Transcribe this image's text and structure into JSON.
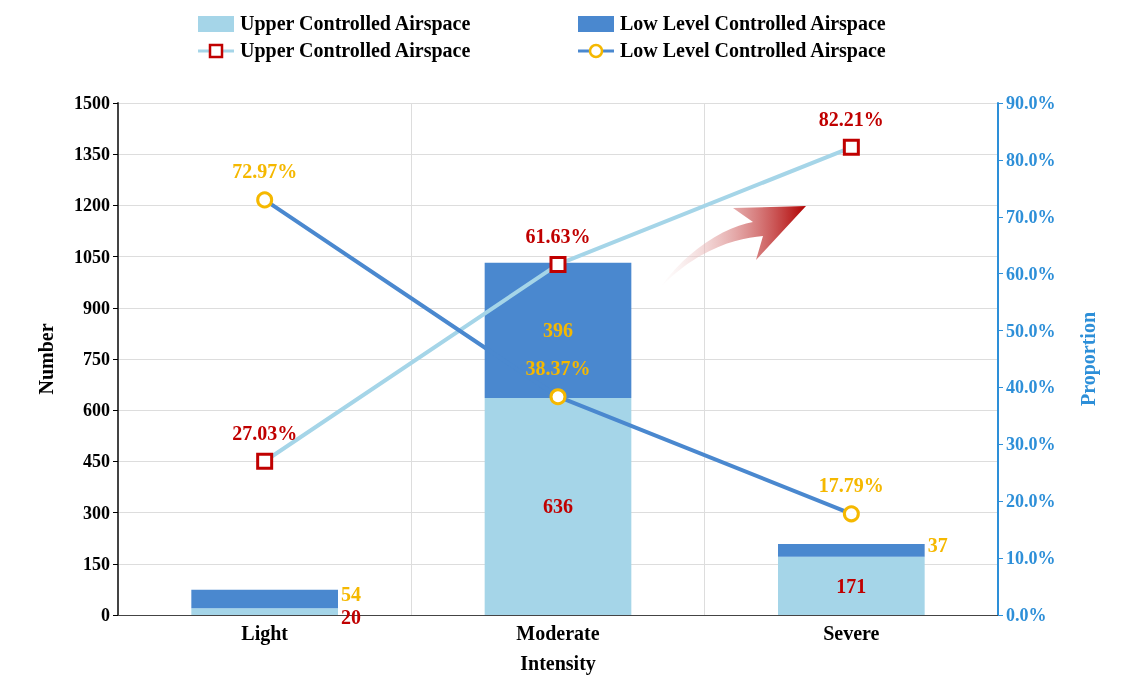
{
  "chart_data": {
    "type": "bar",
    "stacked": true,
    "xlabel": "Intensity",
    "ylabel": "Number",
    "y2label": "Proportion",
    "categories": [
      "Light",
      "Moderate",
      "Severe"
    ],
    "series": [
      {
        "name": "Upper Controlled Airspace",
        "color": "#a5d5e8",
        "values": [
          20,
          636,
          171
        ]
      },
      {
        "name": "Low Level Controlled Airspace",
        "color": "#4a88cf",
        "values": [
          54,
          396,
          37
        ]
      },
      {
        "name": "Upper Controlled Airspace",
        "type": "line",
        "axis": "y2",
        "color": "#a5d5e8",
        "marker": "square",
        "values": [
          27.03,
          61.63,
          82.21
        ],
        "value_labels": [
          "27.03%",
          "61.63%",
          "82.21%"
        ]
      },
      {
        "name": "Low Level Controlled Airspace",
        "type": "line",
        "axis": "y2",
        "color": "#4a88cf",
        "marker": "circle",
        "values": [
          72.97,
          38.37,
          17.79
        ],
        "value_labels": [
          "72.97%",
          "38.37%",
          "17.79%"
        ]
      }
    ],
    "data_labels": true,
    "ylim": [
      0,
      1500
    ],
    "yticks": [
      0,
      150,
      300,
      450,
      600,
      750,
      900,
      1050,
      1200,
      1350,
      1500
    ],
    "y2lim": [
      0,
      90
    ],
    "y2ticks": [
      {
        "value": 0,
        "label": "0.0%"
      },
      {
        "value": 10,
        "label": "10.0%"
      },
      {
        "value": 20,
        "label": "20.0%"
      },
      {
        "value": 30,
        "label": "30.0%"
      },
      {
        "value": 40,
        "label": "40.0%"
      },
      {
        "value": 50,
        "label": "50.0%"
      },
      {
        "value": 60,
        "label": "60.0%"
      },
      {
        "value": 70,
        "label": "70.0%"
      },
      {
        "value": 80,
        "label": "80.0%"
      },
      {
        "value": 90,
        "label": "90.0%"
      }
    ],
    "grid": true,
    "legend": "top"
  }
}
